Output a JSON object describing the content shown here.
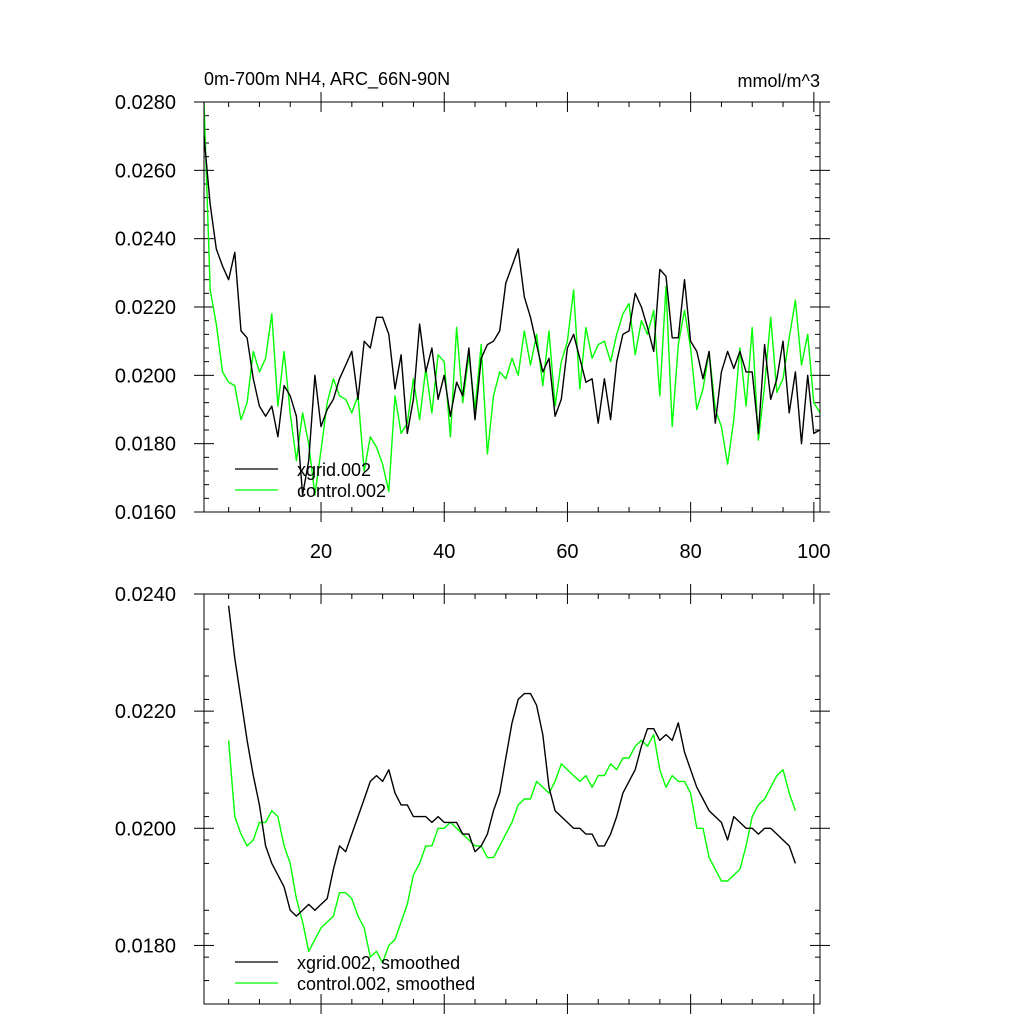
{
  "chart_data": [
    {
      "type": "line",
      "title_left": "0m-700m NH4, ARC_66N-90N",
      "title_right": "mmol/m^3",
      "xlim": [
        1,
        101
      ],
      "ylim": [
        0.016,
        0.028
      ],
      "xticks": [
        20,
        40,
        60,
        80,
        100
      ],
      "xtick_labels": [
        "20",
        "40",
        "60",
        "80",
        "100"
      ],
      "yticks": [
        0.016,
        0.018,
        0.02,
        0.022,
        0.024,
        0.026,
        0.028
      ],
      "ytick_labels": [
        "0.0160",
        "0.0180",
        "0.0200",
        "0.0220",
        "0.0240",
        "0.0260",
        "0.0280"
      ],
      "legend_position": "bottom-left",
      "grid": false,
      "series": [
        {
          "name": "xgrid.002",
          "color": "#000000",
          "x": [
            1,
            2,
            3,
            4,
            5,
            6,
            7,
            8,
            9,
            10,
            11,
            12,
            13,
            14,
            15,
            16,
            17,
            18,
            19,
            20,
            21,
            22,
            23,
            24,
            25,
            26,
            27,
            28,
            29,
            30,
            31,
            32,
            33,
            34,
            35,
            36,
            37,
            38,
            39,
            40,
            41,
            42,
            43,
            44,
            45,
            46,
            47,
            48,
            49,
            50,
            51,
            52,
            53,
            54,
            55,
            56,
            57,
            58,
            59,
            60,
            61,
            62,
            63,
            64,
            65,
            66,
            67,
            68,
            69,
            70,
            71,
            72,
            73,
            74,
            75,
            76,
            77,
            78,
            79,
            80,
            81,
            82,
            83,
            84,
            85,
            86,
            87,
            88,
            89,
            90,
            91,
            92,
            93,
            94,
            95,
            96,
            97,
            98,
            99,
            100,
            101
          ],
          "values": [
            0.027,
            0.025,
            0.0237,
            0.0232,
            0.0228,
            0.0236,
            0.0213,
            0.0211,
            0.0199,
            0.0191,
            0.0188,
            0.0191,
            0.0182,
            0.0197,
            0.0194,
            0.0188,
            0.0165,
            0.0175,
            0.02,
            0.0185,
            0.019,
            0.0193,
            0.0199,
            0.0203,
            0.0207,
            0.0193,
            0.021,
            0.0208,
            0.0217,
            0.0217,
            0.0212,
            0.0196,
            0.0206,
            0.0183,
            0.0193,
            0.0215,
            0.0201,
            0.0208,
            0.0193,
            0.02,
            0.0188,
            0.0198,
            0.0194,
            0.0208,
            0.0187,
            0.0205,
            0.0209,
            0.021,
            0.0213,
            0.0227,
            0.0232,
            0.0237,
            0.0223,
            0.0217,
            0.0209,
            0.0201,
            0.0205,
            0.0188,
            0.0193,
            0.0208,
            0.0212,
            0.0205,
            0.0198,
            0.0199,
            0.0186,
            0.0199,
            0.0187,
            0.0204,
            0.0212,
            0.0213,
            0.0224,
            0.022,
            0.0214,
            0.0207,
            0.0231,
            0.0229,
            0.0211,
            0.0211,
            0.0228,
            0.021,
            0.0207,
            0.0199,
            0.0207,
            0.0186,
            0.0201,
            0.0207,
            0.0202,
            0.0207,
            0.0201,
            0.0201,
            0.0183,
            0.0209,
            0.0193,
            0.0199,
            0.021,
            0.0189,
            0.0201,
            0.018,
            0.02,
            0.0183,
            0.0184
          ]
        },
        {
          "name": "control.002",
          "color": "#00ff00",
          "x": [
            1,
            2,
            3,
            4,
            5,
            6,
            7,
            8,
            9,
            10,
            11,
            12,
            13,
            14,
            15,
            16,
            17,
            18,
            19,
            20,
            21,
            22,
            23,
            24,
            25,
            26,
            27,
            28,
            29,
            30,
            31,
            32,
            33,
            34,
            35,
            36,
            37,
            38,
            39,
            40,
            41,
            42,
            43,
            44,
            45,
            46,
            47,
            48,
            49,
            50,
            51,
            52,
            53,
            54,
            55,
            56,
            57,
            58,
            59,
            60,
            61,
            62,
            63,
            64,
            65,
            66,
            67,
            68,
            69,
            70,
            71,
            72,
            73,
            74,
            75,
            76,
            77,
            78,
            79,
            80,
            81,
            82,
            83,
            84,
            85,
            86,
            87,
            88,
            89,
            90,
            91,
            92,
            93,
            94,
            95,
            96,
            97,
            98,
            99,
            100,
            101
          ],
          "values": [
            0.028,
            0.0225,
            0.0215,
            0.0201,
            0.0198,
            0.0197,
            0.0187,
            0.0192,
            0.0207,
            0.0201,
            0.0205,
            0.0218,
            0.0191,
            0.0207,
            0.0189,
            0.0175,
            0.0189,
            0.018,
            0.0165,
            0.0178,
            0.0192,
            0.0199,
            0.0194,
            0.0193,
            0.0189,
            0.0194,
            0.0172,
            0.0182,
            0.0179,
            0.0174,
            0.0166,
            0.0194,
            0.0183,
            0.0186,
            0.0199,
            0.0187,
            0.0202,
            0.0189,
            0.0206,
            0.0204,
            0.0182,
            0.0214,
            0.0192,
            0.0206,
            0.019,
            0.0209,
            0.0177,
            0.0194,
            0.0201,
            0.0199,
            0.0205,
            0.02,
            0.0213,
            0.0203,
            0.0212,
            0.0197,
            0.0213,
            0.0191,
            0.0204,
            0.021,
            0.0225,
            0.0196,
            0.0214,
            0.0205,
            0.0209,
            0.021,
            0.0204,
            0.0212,
            0.0218,
            0.0221,
            0.0206,
            0.0216,
            0.0212,
            0.0219,
            0.0194,
            0.0226,
            0.0185,
            0.0209,
            0.0219,
            0.0208,
            0.019,
            0.0196,
            0.0207,
            0.019,
            0.0185,
            0.0174,
            0.0187,
            0.0208,
            0.0191,
            0.0214,
            0.0181,
            0.0197,
            0.0217,
            0.0195,
            0.0199,
            0.0211,
            0.0222,
            0.0203,
            0.0212,
            0.0192,
            0.0189
          ]
        }
      ]
    },
    {
      "type": "line",
      "xlim": [
        1,
        101
      ],
      "ylim": [
        0.017,
        0.024
      ],
      "xticks": [
        20,
        40,
        60,
        80,
        100
      ],
      "yticks": [
        0.018,
        0.02,
        0.022,
        0.024
      ],
      "ytick_labels": [
        "0.0180",
        "0.0200",
        "0.0220",
        "0.0240"
      ],
      "legend_position": "bottom-left",
      "grid": false,
      "series": [
        {
          "name": "xgrid.002, smoothed",
          "color": "#000000",
          "x": [
            5,
            6,
            7,
            8,
            9,
            10,
            11,
            12,
            13,
            14,
            15,
            16,
            17,
            18,
            19,
            20,
            21,
            22,
            23,
            24,
            25,
            26,
            27,
            28,
            29,
            30,
            31,
            32,
            33,
            34,
            35,
            36,
            37,
            38,
            39,
            40,
            41,
            42,
            43,
            44,
            45,
            46,
            47,
            48,
            49,
            50,
            51,
            52,
            53,
            54,
            55,
            56,
            57,
            58,
            59,
            60,
            61,
            62,
            63,
            64,
            65,
            66,
            67,
            68,
            69,
            70,
            71,
            72,
            73,
            74,
            75,
            76,
            77,
            78,
            79,
            80,
            81,
            82,
            83,
            84,
            85,
            86,
            87,
            88,
            89,
            90,
            91,
            92,
            93,
            94,
            95,
            96,
            97
          ],
          "values": [
            0.0238,
            0.0229,
            0.0222,
            0.0215,
            0.0209,
            0.0204,
            0.0197,
            0.0194,
            0.0192,
            0.019,
            0.0186,
            0.0185,
            0.0186,
            0.0187,
            0.0186,
            0.0187,
            0.0188,
            0.0193,
            0.0197,
            0.0196,
            0.0199,
            0.0202,
            0.0205,
            0.0208,
            0.0209,
            0.0208,
            0.021,
            0.0206,
            0.0204,
            0.0204,
            0.0202,
            0.0202,
            0.0202,
            0.0201,
            0.0202,
            0.0201,
            0.0201,
            0.0201,
            0.0199,
            0.0199,
            0.0196,
            0.0197,
            0.0199,
            0.0203,
            0.0206,
            0.0212,
            0.0218,
            0.0222,
            0.0223,
            0.0223,
            0.0221,
            0.0216,
            0.0207,
            0.0203,
            0.0202,
            0.0201,
            0.02,
            0.02,
            0.0199,
            0.0199,
            0.0197,
            0.0197,
            0.0199,
            0.0202,
            0.0206,
            0.0208,
            0.021,
            0.0214,
            0.0217,
            0.0217,
            0.0215,
            0.0216,
            0.0215,
            0.0218,
            0.0213,
            0.021,
            0.0207,
            0.0205,
            0.0203,
            0.0202,
            0.0201,
            0.0198,
            0.0202,
            0.0201,
            0.02,
            0.02,
            0.0199,
            0.02,
            0.02,
            0.0199,
            0.0198,
            0.0197,
            0.0194
          ]
        },
        {
          "name": "control.002, smoothed",
          "color": "#00ff00",
          "x": [
            5,
            6,
            7,
            8,
            9,
            10,
            11,
            12,
            13,
            14,
            15,
            16,
            17,
            18,
            19,
            20,
            21,
            22,
            23,
            24,
            25,
            26,
            27,
            28,
            29,
            30,
            31,
            32,
            33,
            34,
            35,
            36,
            37,
            38,
            39,
            40,
            41,
            42,
            43,
            44,
            45,
            46,
            47,
            48,
            49,
            50,
            51,
            52,
            53,
            54,
            55,
            56,
            57,
            58,
            59,
            60,
            61,
            62,
            63,
            64,
            65,
            66,
            67,
            68,
            69,
            70,
            71,
            72,
            73,
            74,
            75,
            76,
            77,
            78,
            79,
            80,
            81,
            82,
            83,
            84,
            85,
            86,
            87,
            88,
            89,
            90,
            91,
            92,
            93,
            94,
            95,
            96,
            97
          ],
          "values": [
            0.0215,
            0.0202,
            0.0199,
            0.0197,
            0.0198,
            0.0201,
            0.0201,
            0.0203,
            0.0202,
            0.0197,
            0.0194,
            0.0188,
            0.0184,
            0.0179,
            0.0181,
            0.0183,
            0.0184,
            0.0185,
            0.0189,
            0.0189,
            0.0188,
            0.0185,
            0.0183,
            0.0178,
            0.0179,
            0.0177,
            0.018,
            0.0181,
            0.0184,
            0.0187,
            0.0192,
            0.0194,
            0.0197,
            0.0197,
            0.02,
            0.02,
            0.0201,
            0.02,
            0.0199,
            0.0198,
            0.0197,
            0.0197,
            0.0195,
            0.0195,
            0.0197,
            0.0199,
            0.0201,
            0.0204,
            0.0205,
            0.0205,
            0.0208,
            0.0207,
            0.0206,
            0.0208,
            0.0211,
            0.021,
            0.0209,
            0.0208,
            0.0209,
            0.0207,
            0.0209,
            0.0209,
            0.0211,
            0.021,
            0.0212,
            0.0212,
            0.0214,
            0.0215,
            0.0214,
            0.0216,
            0.021,
            0.0207,
            0.0209,
            0.0208,
            0.0208,
            0.0206,
            0.02,
            0.02,
            0.0195,
            0.0193,
            0.0191,
            0.0191,
            0.0192,
            0.0193,
            0.0197,
            0.0202,
            0.0204,
            0.0205,
            0.0207,
            0.0209,
            0.021,
            0.0206,
            0.0203
          ]
        }
      ]
    }
  ]
}
